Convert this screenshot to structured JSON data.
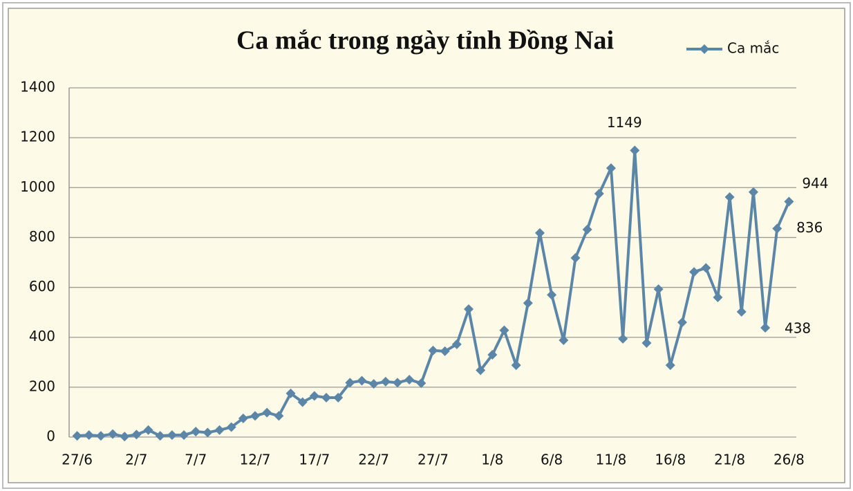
{
  "chart_data": {
    "type": "line",
    "title": "Ca mắc trong ngày tỉnh Đồng Nai",
    "categories": [
      "27/6",
      null,
      null,
      null,
      null,
      "2/7",
      null,
      null,
      null,
      null,
      "7/7",
      null,
      null,
      null,
      null,
      "12/7",
      null,
      null,
      null,
      null,
      "17/7",
      null,
      null,
      null,
      null,
      "22/7",
      null,
      null,
      null,
      null,
      "27/7",
      null,
      null,
      null,
      null,
      "1/8",
      null,
      null,
      null,
      null,
      "6/8",
      null,
      null,
      null,
      null,
      "11/8",
      null,
      null,
      null,
      null,
      "16/8",
      null,
      null,
      null,
      null,
      "21/8",
      null,
      null,
      null,
      null,
      "26/8"
    ],
    "series": [
      {
        "name": "Ca mắc",
        "color": "#5b86a8",
        "values": [
          5,
          8,
          5,
          12,
          2,
          10,
          28,
          5,
          8,
          8,
          22,
          18,
          28,
          40,
          75,
          85,
          98,
          85,
          175,
          140,
          165,
          158,
          158,
          218,
          226,
          213,
          222,
          218,
          230,
          216,
          347,
          344,
          372,
          513,
          268,
          330,
          428,
          288,
          537,
          818,
          570,
          388,
          718,
          832,
          976,
          1078,
          394,
          1149,
          377,
          593,
          288,
          460,
          662,
          678,
          560,
          962,
          502,
          982,
          438,
          836,
          944
        ]
      }
    ],
    "ylim": [
      0,
      1400
    ],
    "yticks": [
      0,
      200,
      400,
      600,
      800,
      1000,
      1200,
      1400
    ],
    "grid": true,
    "legend": "top-right"
  }
}
